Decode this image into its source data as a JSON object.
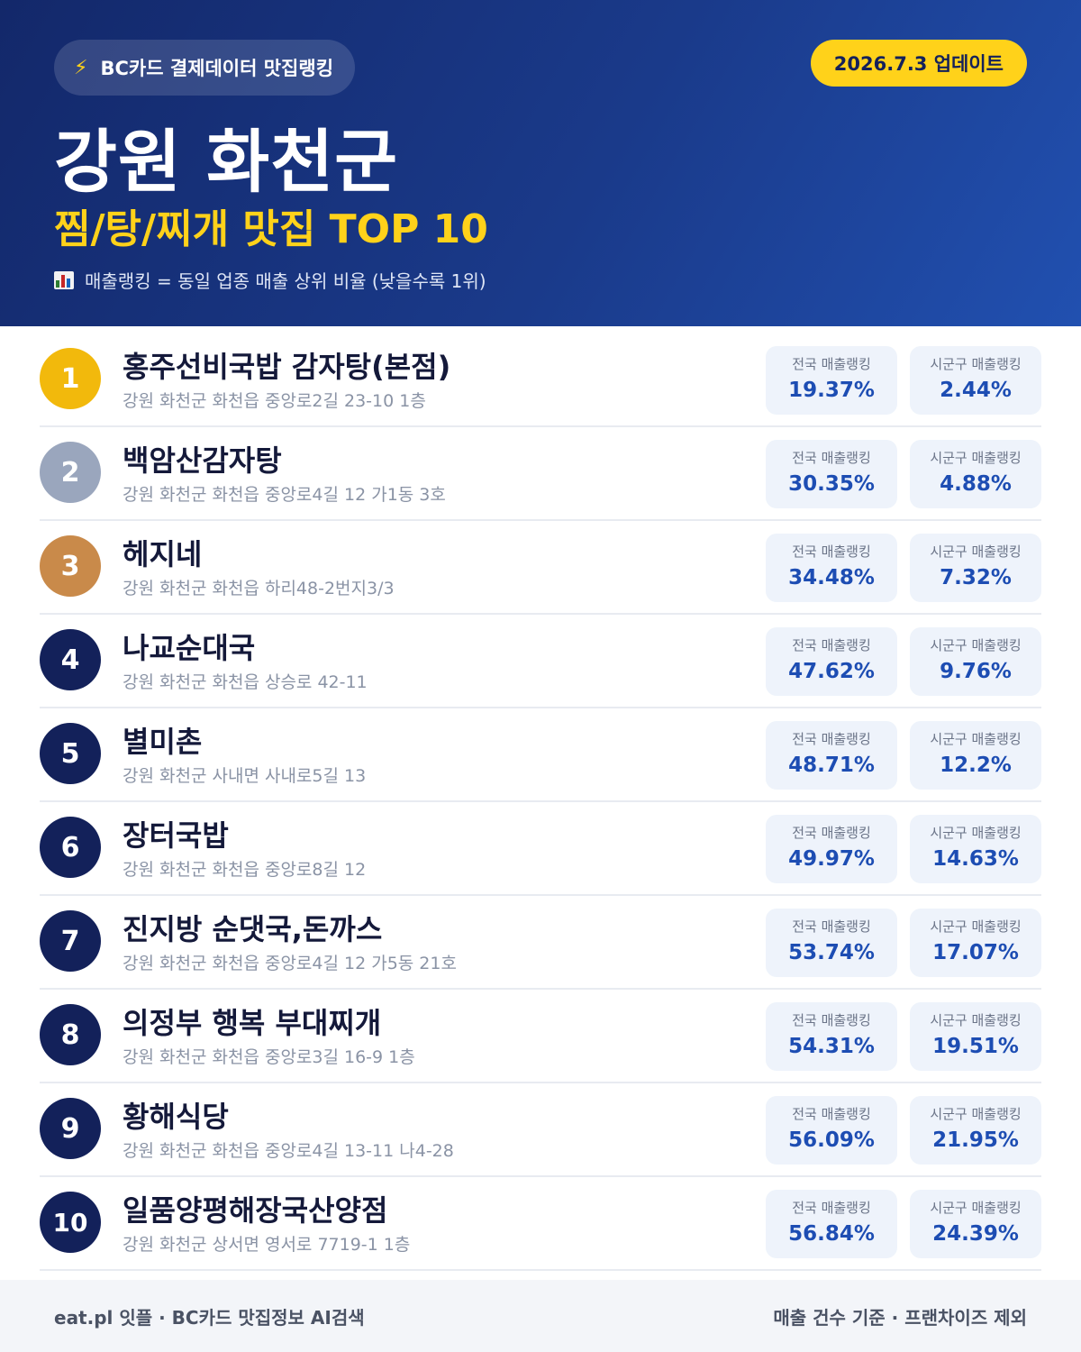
{
  "header": {
    "brand": "BC카드 결제데이터 맛집랭킹",
    "update": "2026.7.3 업데이트",
    "region": "강원 화천군",
    "subtitle": "찜/탕/찌개 맛집 TOP 10",
    "note": "매출랭킹 = 동일 업종 매출 상위 비율 (낮을수록 1위)"
  },
  "labels": {
    "national": "전국 매출랭킹",
    "local": "시군구 매출랭킹"
  },
  "items": [
    {
      "rank": "1",
      "name": "홍주선비국밥 감자탕(본점)",
      "address": "강원 화천군 화천읍 중앙로2길 23-10 1층",
      "national": "19.37%",
      "local": "2.44%"
    },
    {
      "rank": "2",
      "name": "백암산감자탕",
      "address": "강원 화천군 화천읍 중앙로4길 12 가1동 3호",
      "national": "30.35%",
      "local": "4.88%"
    },
    {
      "rank": "3",
      "name": "헤지네",
      "address": "강원 화천군 화천읍 하리48-2번지3/3",
      "national": "34.48%",
      "local": "7.32%"
    },
    {
      "rank": "4",
      "name": "나교순대국",
      "address": "강원 화천군 화천읍 상승로 42-11",
      "national": "47.62%",
      "local": "9.76%"
    },
    {
      "rank": "5",
      "name": "별미촌",
      "address": "강원 화천군 사내면 사내로5길 13",
      "national": "48.71%",
      "local": "12.2%"
    },
    {
      "rank": "6",
      "name": "장터국밥",
      "address": "강원 화천군 화천읍 중앙로8길 12",
      "national": "49.97%",
      "local": "14.63%"
    },
    {
      "rank": "7",
      "name": "진지방 순댓국,돈까스",
      "address": "강원 화천군 화천읍 중앙로4길 12 가5동 21호",
      "national": "53.74%",
      "local": "17.07%"
    },
    {
      "rank": "8",
      "name": "의정부 행복 부대찌개",
      "address": "강원 화천군 화천읍 중앙로3길 16-9 1층",
      "national": "54.31%",
      "local": "19.51%"
    },
    {
      "rank": "9",
      "name": "황해식당",
      "address": "강원 화천군 화천읍 중앙로4길 13-11 나4-28",
      "national": "56.09%",
      "local": "21.95%"
    },
    {
      "rank": "10",
      "name": "일품양평해장국산양점",
      "address": "강원 화천군 상서면 영서로 7719-1 1층",
      "national": "56.84%",
      "local": "24.39%"
    }
  ],
  "footer": {
    "left": "eat.pl 잇플 · BC카드 맛집정보 AI검색",
    "right": "매출 건수 기준 · 프랜차이즈 제외"
  },
  "colors": {
    "header_bg": "#1a3a8a",
    "accent_yellow": "#ffd21a",
    "rank_gold": "#f2b90c",
    "rank_silver": "#9aa6bd",
    "rank_bronze": "#c98a4a",
    "rank_default": "#13215a",
    "value_blue": "#1d4db3"
  },
  "icons": {
    "brand": "lightning-icon",
    "note": "bar-chart-icon"
  }
}
